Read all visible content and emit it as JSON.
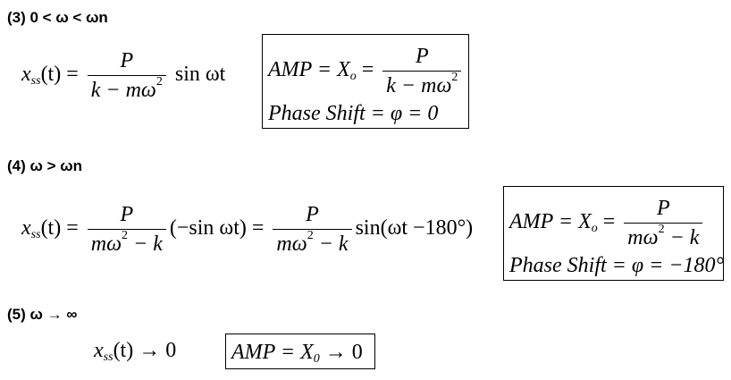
{
  "sections": [
    {
      "heading": "(3)  0 < ω < ωn",
      "response_lhs": "x",
      "response_sub": "ss",
      "response_t": "(t) =",
      "num": "P",
      "den": "k − mω",
      "den_sup": "2",
      "trail": "sin ωt",
      "box_amp_lhs": "AMP = X",
      "box_amp_sub": "o",
      "box_amp_eq": "=",
      "box_num": "P",
      "box_den": "k − mω",
      "box_den_sup": "2",
      "box_phase": "Phase Shift = φ = 0"
    },
    {
      "heading": "(4)  ω > ωn",
      "response_lhs": "x",
      "response_sub": "ss",
      "response_t": "(t) =",
      "num1": "P",
      "den1": "mω",
      "den1_sup": "2",
      "den1_tail": " − k",
      "mid": "(−sin ωt) =",
      "num2": "P",
      "den2": "mω",
      "den2_sup": "2",
      "den2_tail": " − k",
      "trail": "sin(ωt −180°)",
      "box_amp_lhs": "AMP = X",
      "box_amp_sub": "o",
      "box_amp_eq": "=",
      "box_num": "P",
      "box_den": "mω",
      "box_den_sup": "2",
      "box_den_tail": " − k",
      "box_phase": "Phase Shift = φ = −180°"
    },
    {
      "heading": "(5)  ω → ∞",
      "response_lhs": "x",
      "response_sub": "ss",
      "response_t": "(t) → 0",
      "box_amp": "AMP = X",
      "box_amp_sub": "0",
      "box_amp_tail": " → 0"
    }
  ]
}
